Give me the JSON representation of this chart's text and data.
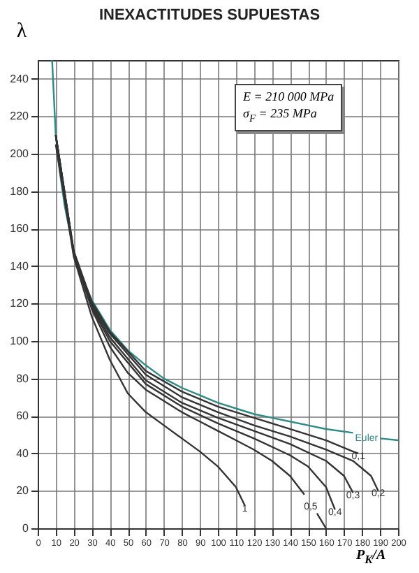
{
  "chart_data": {
    "type": "line",
    "title": "INEXACTITUDES SUPUESTAS",
    "xlabel": "P$_{K}$/A",
    "ylabel": "λ",
    "xlim": [
      0,
      200
    ],
    "ylim": [
      0,
      250
    ],
    "xticks": [
      0,
      10,
      20,
      30,
      40,
      50,
      60,
      70,
      80,
      90,
      100,
      110,
      120,
      130,
      140,
      150,
      160,
      170,
      180,
      190,
      200
    ],
    "yticks": [
      0,
      20,
      40,
      60,
      80,
      100,
      120,
      140,
      160,
      180,
      200,
      220,
      240
    ],
    "grid": true,
    "legend": false,
    "line_style": "solid",
    "marker": "none",
    "annotations": [
      "E = 210 000 MPa",
      "σ$_{F}$ = 235 MPa"
    ],
    "series": [
      {
        "name": "Euler",
        "color": "#2e8b87",
        "x": [
          8,
          10,
          12,
          15,
          20,
          25,
          30,
          40,
          50,
          60,
          70,
          80,
          90,
          100,
          110,
          120,
          130,
          140,
          150,
          160,
          175,
          182,
          190,
          200
        ],
        "values": [
          250,
          210,
          192,
          172,
          148,
          133,
          122,
          106,
          95,
          87,
          80,
          75,
          71,
          67,
          64,
          61,
          59,
          57,
          55,
          53,
          51,
          null,
          48,
          47
        ]
      },
      {
        "name": "0,1",
        "color": "#333333",
        "x": [
          10,
          20,
          30,
          40,
          60,
          80,
          100,
          120,
          140,
          160,
          175,
          178
        ],
        "values": [
          210,
          148,
          121,
          105,
          84,
          73,
          65,
          59,
          53,
          47,
          41,
          40
        ]
      },
      {
        "name": "0,2",
        "color": "#333333",
        "x": [
          10,
          20,
          30,
          40,
          60,
          80,
          100,
          120,
          140,
          160,
          175,
          185,
          189
        ],
        "values": [
          210,
          148,
          120,
          104,
          82,
          70,
          62,
          55,
          49,
          42,
          36,
          28,
          20
        ]
      },
      {
        "name": "0,3",
        "color": "#333333",
        "x": [
          10,
          20,
          30,
          40,
          60,
          80,
          100,
          120,
          140,
          160,
          170,
          175
        ],
        "values": [
          210,
          147,
          119,
          102,
          79,
          67,
          59,
          52,
          45,
          36,
          28,
          19
        ]
      },
      {
        "name": "0,4",
        "color": "#333333",
        "x": [
          10,
          20,
          30,
          40,
          60,
          80,
          100,
          120,
          140,
          150,
          160,
          165
        ],
        "values": [
          210,
          147,
          118,
          100,
          77,
          65,
          56,
          48,
          39,
          33,
          22,
          10
        ]
      },
      {
        "name": "0,5",
        "color": "#333333",
        "x": [
          10,
          20,
          30,
          40,
          50,
          60,
          70,
          80,
          90,
          100,
          110,
          120,
          130,
          140,
          148,
          152,
          155,
          160
        ],
        "values": [
          210,
          146,
          117,
          97,
          83,
          74,
          68,
          62,
          57,
          52,
          47,
          42,
          36,
          28,
          18,
          null,
          8,
          0
        ]
      },
      {
        "name": "1",
        "color": "#333333",
        "x": [
          10,
          20,
          30,
          40,
          50,
          60,
          70,
          80,
          90,
          100,
          110,
          115
        ],
        "values": [
          205,
          145,
          113,
          90,
          72,
          62,
          55,
          48,
          41,
          33,
          22,
          12
        ]
      }
    ]
  }
}
